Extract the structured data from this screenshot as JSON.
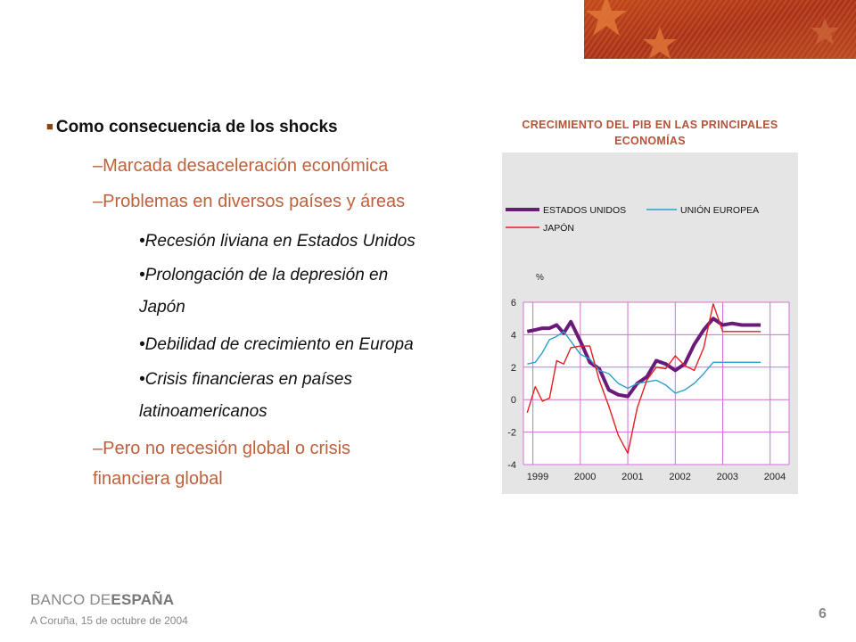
{
  "slide": {
    "bullet_main": "Como consecuencia de los shocks",
    "sub1": "–Marcada desaceleración económica",
    "sub2": "–Problemas en diversos países y áreas",
    "subsub1": "•Recesión liviana en Estados Unidos",
    "subsub2_line1": "•Prolongación de la depresión en",
    "subsub2_line2": "Japón",
    "subsub3": "•Debilidad de crecimiento en Europa",
    "subsub4_line1": "•Crisis financieras en países",
    "subsub4_line2": "latinoamericanos",
    "sub3_line1": "–Pero no recesión global o crisis",
    "sub3_line2": "financiera global"
  },
  "footer": {
    "logo_part1": "BANCO DE",
    "logo_part2": "ESPAÑA",
    "date": "A Coruña,  15 de octubre de  2004",
    "page": "6"
  },
  "colors": {
    "us": "#6A1B7A",
    "eu": "#2AA0CC",
    "jp": "#E02020",
    "grid": "#D070D0",
    "accent": "#B5533A"
  },
  "chart_data": {
    "type": "line",
    "title": "CRECIMIENTO DEL PIB EN LAS PRINCIPALES ECONOMÍAS",
    "ylabel": "%",
    "ylim": [
      -4,
      6
    ],
    "yticks": [
      6,
      4,
      2,
      0,
      -2,
      -4
    ],
    "xlim": [
      1998.8,
      2004.4
    ],
    "xticks": [
      "1999",
      "2000",
      "2001",
      "2002",
      "2003",
      "2004"
    ],
    "series": [
      {
        "name": "ESTADOS UNIDOS",
        "color": "#6A1B7A",
        "x": [
          1998.88,
          1999.05,
          1999.2,
          1999.35,
          1999.5,
          1999.65,
          1999.8,
          2000.0,
          2000.2,
          2000.4,
          2000.6,
          2000.8,
          2001.0,
          2001.2,
          2001.4,
          2001.6,
          2001.8,
          2002.0,
          2002.2,
          2002.4,
          2002.6,
          2002.8,
          2003.0,
          2003.2,
          2003.4,
          2003.6,
          2003.8
        ],
        "values": [
          4.2,
          4.3,
          4.4,
          4.4,
          4.6,
          4.1,
          4.8,
          3.6,
          2.3,
          1.9,
          0.6,
          0.3,
          0.2,
          1.0,
          1.4,
          2.4,
          2.2,
          1.8,
          2.2,
          3.4,
          4.3,
          5.0,
          4.6,
          4.7,
          4.6,
          4.6,
          4.6
        ]
      },
      {
        "name": "UNIÓN EUROPEA",
        "color": "#2AA0CC",
        "x": [
          1998.88,
          1999.05,
          1999.2,
          1999.35,
          1999.5,
          1999.65,
          1999.8,
          2000.0,
          2000.2,
          2000.4,
          2000.6,
          2000.8,
          2001.0,
          2001.2,
          2001.4,
          2001.6,
          2001.8,
          2002.0,
          2002.2,
          2002.4,
          2002.6,
          2002.8,
          2003.0,
          2003.2,
          2003.4,
          2003.6,
          2003.8
        ],
        "values": [
          2.2,
          2.3,
          2.9,
          3.7,
          3.9,
          4.2,
          3.6,
          2.8,
          2.5,
          1.8,
          1.6,
          1.0,
          0.7,
          1.0,
          1.1,
          1.2,
          0.9,
          0.4,
          0.6,
          1.0,
          1.6,
          2.3,
          2.3,
          2.3,
          2.3,
          2.3,
          2.3
        ]
      },
      {
        "name": "JAPÓN",
        "color": "#E02020",
        "x": [
          1998.88,
          1999.05,
          1999.2,
          1999.35,
          1999.5,
          1999.65,
          1999.8,
          2000.0,
          2000.2,
          2000.4,
          2000.6,
          2000.8,
          2001.0,
          2001.2,
          2001.4,
          2001.6,
          2001.8,
          2002.0,
          2002.2,
          2002.4,
          2002.6,
          2002.8,
          2003.0,
          2003.2,
          2003.4,
          2003.6,
          2003.8
        ],
        "values": [
          -0.8,
          0.8,
          -0.1,
          0.1,
          2.4,
          2.2,
          3.2,
          3.3,
          3.3,
          1.2,
          -0.4,
          -2.2,
          -3.3,
          -0.5,
          1.2,
          2.0,
          1.9,
          2.7,
          2.1,
          1.8,
          3.2,
          5.9,
          4.2,
          4.2,
          4.2,
          4.2,
          4.2
        ]
      }
    ],
    "legend": "top"
  }
}
